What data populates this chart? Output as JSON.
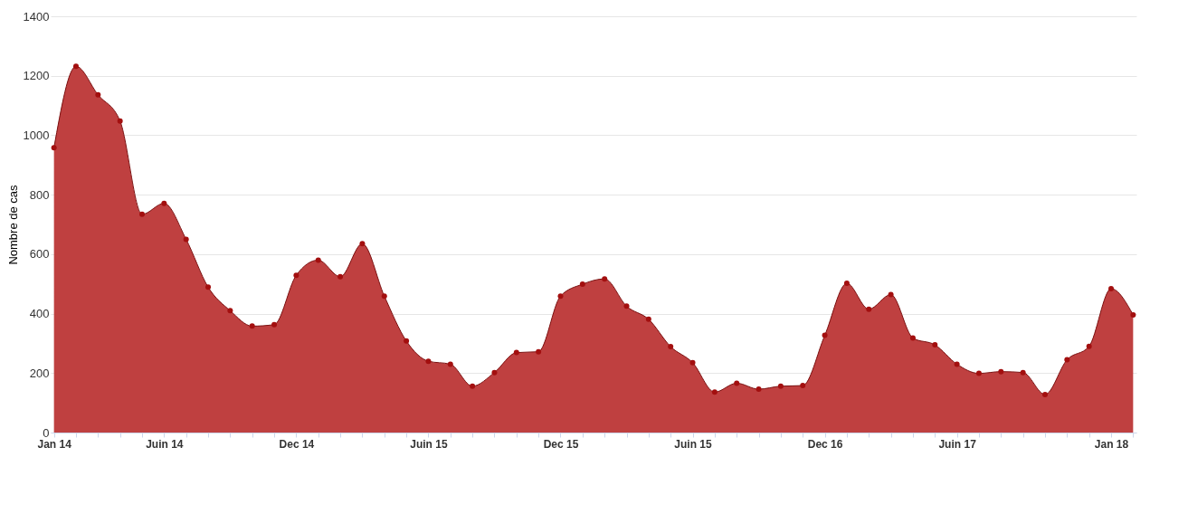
{
  "chart_data": {
    "type": "area",
    "ylabel": "Nombre de cas",
    "categories": [
      "Jan 14",
      null,
      null,
      null,
      null,
      "Juin 14",
      null,
      null,
      null,
      null,
      null,
      "Dec 14",
      null,
      null,
      null,
      null,
      null,
      "Juin 15",
      null,
      null,
      null,
      null,
      null,
      "Dec 15",
      null,
      null,
      null,
      null,
      null,
      "Juin 15",
      null,
      null,
      null,
      null,
      null,
      "Dec 16",
      null,
      null,
      null,
      null,
      null,
      "Juin 17",
      null,
      null,
      null,
      null,
      null,
      null,
      "Jan 18",
      null
    ],
    "series": [
      {
        "color": "#bf4040",
        "values": [
          958,
          1232,
          1136,
          1048,
          734,
          771,
          650,
          489,
          410,
          358,
          363,
          529,
          580,
          524,
          635,
          459,
          308,
          240,
          230,
          156,
          202,
          269,
          272,
          459,
          499,
          517,
          425,
          381,
          289,
          235,
          136,
          166,
          146,
          156,
          158,
          327,
          502,
          415,
          464,
          318,
          295,
          230,
          199,
          205,
          202,
          128,
          245,
          290,
          484,
          396
        ]
      }
    ],
    "ylim": [
      0,
      1400
    ],
    "yticks": [
      0,
      200,
      400,
      600,
      800,
      1000,
      1200,
      1400
    ],
    "grid": "y",
    "marker": "circle"
  }
}
